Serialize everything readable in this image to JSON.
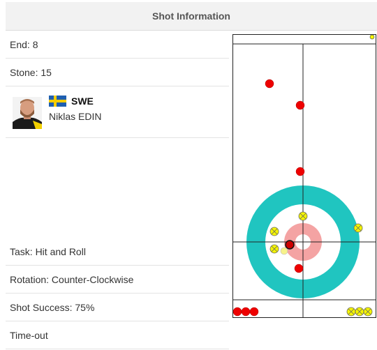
{
  "panel": {
    "title": "Shot Information"
  },
  "shot": {
    "end_label": "End: 8",
    "stone_label": "Stone: 15",
    "player": {
      "country": "SWE",
      "name": "Niklas EDIN"
    },
    "task_label": "Task: Hit and Roll",
    "rotation_label": "Rotation: Counter-Clockwise",
    "success_label": "Shot Success: 75%",
    "timeout_label": "Time-out"
  },
  "colors": {
    "red_stone": "#ee0000",
    "yellow_stone": "#f5f500",
    "outer_ring": "#20c5c0",
    "inner_ring": "#f4a3a3",
    "button_center": "#ffffff",
    "line": "#222222"
  },
  "icons": {
    "flag": "sweden-flag-icon"
  }
}
